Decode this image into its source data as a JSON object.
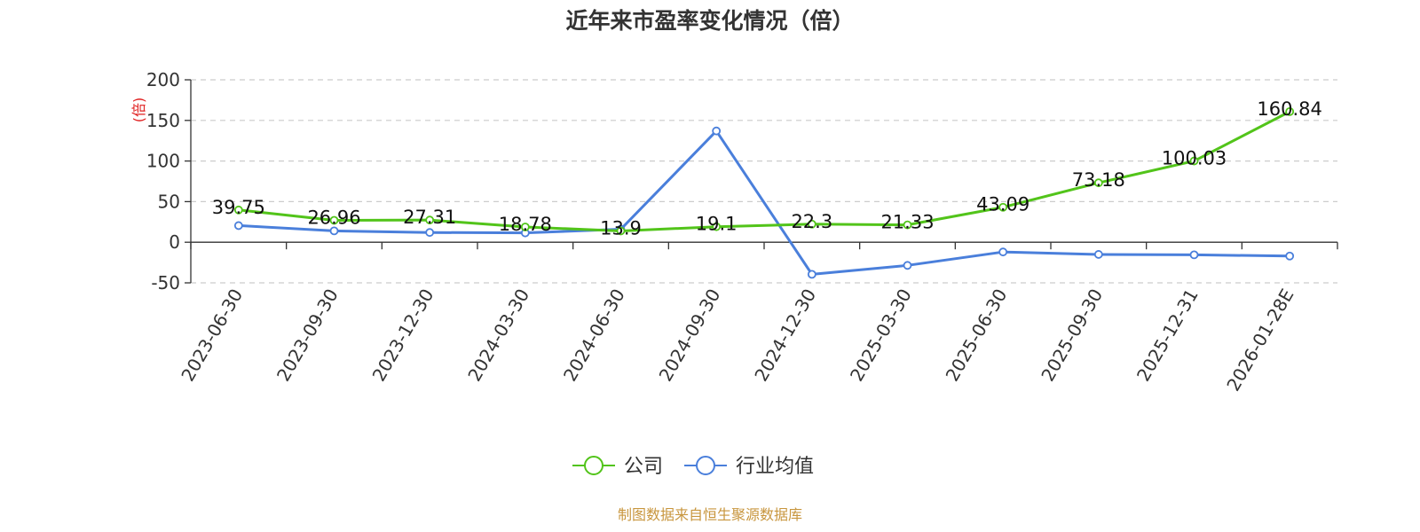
{
  "chart_data": {
    "type": "line",
    "title": "近年来市盈率变化情况（倍）",
    "ylabel": "(倍)",
    "xlabel": "",
    "categories": [
      "2023-06-30",
      "2023-09-30",
      "2023-12-30",
      "2024-03-30",
      "2024-06-30",
      "2024-09-30",
      "2024-12-30",
      "2025-03-30",
      "2025-06-30",
      "2025-09-30",
      "2025-12-31",
      "2026-01-28E"
    ],
    "ylim": [
      -50,
      200
    ],
    "yticks": [
      -50,
      0,
      50,
      100,
      150,
      200
    ],
    "grid": true,
    "legend_position": "bottom-center",
    "series": [
      {
        "name": "公司",
        "color": "#52c41a",
        "values": [
          39.75,
          26.96,
          27.31,
          18.78,
          13.9,
          19.1,
          22.3,
          21.33,
          43.09,
          73.18,
          100.03,
          160.84
        ],
        "labels": [
          "39.75",
          "26.96",
          "27.31",
          "18.78",
          "13.9",
          "19.1",
          "22.3",
          "21.33",
          "43.09",
          "73.18",
          "100.03",
          "160.84"
        ]
      },
      {
        "name": "行业均值",
        "color": "#4a7fdb",
        "values": [
          20.5,
          14.0,
          12.0,
          11.5,
          16.0,
          137.0,
          -39.5,
          -28.5,
          -12.0,
          -15.0,
          -15.5,
          -17.0
        ]
      }
    ]
  },
  "footer": {
    "source_text": "制图数据来自恒生聚源数据库",
    "source_color": "#c8963e"
  },
  "colors": {
    "axis": "#333333",
    "grid": "#cccccc",
    "ylabel": "#e02020"
  }
}
